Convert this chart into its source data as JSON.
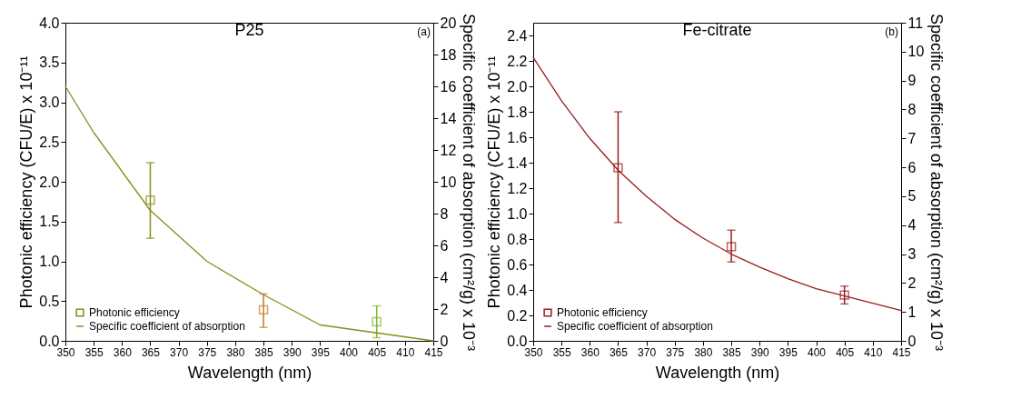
{
  "chart_data": [
    {
      "type": "scatter",
      "title": "P25",
      "xlabel": "Wavelength (nm)",
      "ylabel": "Photonic efficiency (CFU/E) x 10⁻¹¹",
      "y2label": "Specific coefficient of absorption (cm²/g) x 10⁻³",
      "annotations": [
        "(a)"
      ],
      "x": [
        365,
        385,
        405
      ],
      "xlim": [
        350,
        415
      ],
      "xticks": [
        350,
        355,
        360,
        365,
        370,
        375,
        380,
        385,
        390,
        395,
        400,
        405,
        410,
        415
      ],
      "ylim": [
        0,
        4
      ],
      "yticks": [
        {
          "value": 0,
          "label": "0.0"
        },
        0.5,
        {
          "value": 1,
          "label": "1.0"
        },
        1.5,
        {
          "value": 2,
          "label": "2.0"
        },
        2.5,
        {
          "value": 3,
          "label": "3.0"
        },
        3.5,
        {
          "value": 4,
          "label": "4.0"
        }
      ],
      "y2lim": [
        0,
        20
      ],
      "y2ticks": [
        0,
        2,
        4,
        6,
        8,
        10,
        12,
        14,
        16,
        18,
        20
      ],
      "legend": "bottom left",
      "series": [
        {
          "name": "Photonic efficiency",
          "marker": "square",
          "color": "#8b8b1a",
          "colors": [
            "#8b8b1a",
            "#c87a28",
            "#7ab82a"
          ],
          "values": [
            1.77,
            0.39,
            0.24
          ],
          "errors": [
            [
              1.29,
              2.24
            ],
            [
              0.17,
              0.59
            ],
            [
              0.04,
              0.44
            ]
          ]
        },
        {
          "name": "Specific coefficient of absorption",
          "type": "line",
          "axis": "y2",
          "color": "#8b8b1a",
          "x": [
            350,
            355,
            365,
            375,
            385,
            395,
            405,
            415
          ],
          "values": [
            16,
            13.1,
            8.2,
            5,
            2.9,
            1,
            0.5,
            0
          ]
        }
      ]
    },
    {
      "type": "scatter",
      "title": "Fe-citrate",
      "xlabel": "Wavelength (nm)",
      "ylabel": "Photonic efficiency (CFU/E) x 10⁻¹¹",
      "y2label": "Specific coefficient of absorption (cm²/g) x 10⁻³",
      "annotations": [
        "(b)"
      ],
      "x": [
        365,
        385,
        405
      ],
      "xlim": [
        350,
        415
      ],
      "xticks": [
        350,
        355,
        360,
        365,
        370,
        375,
        380,
        385,
        390,
        395,
        400,
        405,
        410,
        415
      ],
      "ylim": [
        0,
        2.5
      ],
      "yticks": [
        {
          "value": 0,
          "label": "0.0"
        },
        0.2,
        0.4,
        0.6,
        0.8,
        {
          "value": 1,
          "label": "1.0"
        },
        1.2,
        1.4,
        1.6,
        1.8,
        {
          "value": 2,
          "label": "2.0"
        },
        2.2,
        2.4
      ],
      "y2lim": [
        0,
        11
      ],
      "y2ticks": [
        0,
        1,
        2,
        3,
        4,
        5,
        6,
        7,
        8,
        9,
        10,
        11
      ],
      "legend": "bottom left",
      "series": [
        {
          "name": "Photonic efficiency",
          "marker": "square",
          "color": "#9b1c1c",
          "colors": [
            "#9b1c1c",
            "#9b1c1c",
            "#9b1c1c"
          ],
          "values": [
            1.36,
            0.74,
            0.36
          ],
          "errors": [
            [
              0.93,
              1.8
            ],
            [
              0.62,
              0.87
            ],
            [
              0.29,
              0.43
            ]
          ]
        },
        {
          "name": "Specific coefficient of absorption",
          "type": "line",
          "axis": "y2",
          "color": "#9b1c1c",
          "x": [
            350,
            355,
            360,
            365,
            370,
            375,
            380,
            385,
            390,
            395,
            400,
            405,
            410,
            415
          ],
          "values": [
            9.8,
            8.3,
            7.0,
            5.9,
            5.0,
            4.2,
            3.55,
            3.0,
            2.55,
            2.15,
            1.8,
            1.55,
            1.3,
            1.05
          ]
        }
      ]
    }
  ]
}
